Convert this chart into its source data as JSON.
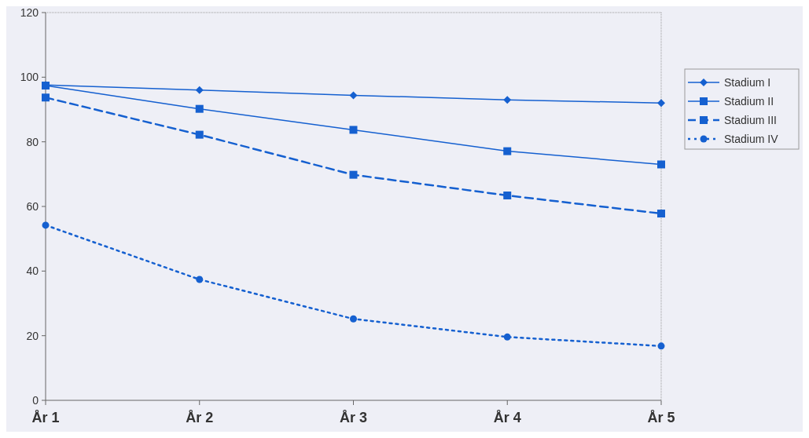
{
  "chart_data": {
    "type": "line",
    "categories": [
      "År 1",
      "År 2",
      "År 3",
      "År 4",
      "År 5"
    ],
    "series": [
      {
        "name": "Stadium I",
        "color": "#1560d0",
        "values": [
          97.6,
          96,
          94.4,
          93,
          92
        ],
        "marker": "diamond",
        "line_style": "solid"
      },
      {
        "name": "Stadium II",
        "color": "#1560d0",
        "values": [
          97.4,
          90.2,
          83.7,
          77.1,
          73
        ],
        "marker": "square",
        "line_style": "solid"
      },
      {
        "name": "Stadium III",
        "color": "#1560d0",
        "values": [
          93.7,
          82.2,
          69.8,
          63.4,
          57.8
        ],
        "marker": "square",
        "line_style": "dashed"
      },
      {
        "name": "Stadium IV",
        "color": "#1560d0",
        "values": [
          54.2,
          37.4,
          25.2,
          19.6,
          16.8
        ],
        "marker": "circle",
        "line_style": "dotted"
      }
    ],
    "ylim": [
      0,
      120
    ],
    "yticks": [
      0,
      20,
      40,
      60,
      80,
      100,
      120
    ],
    "grid": false,
    "legend": "right"
  }
}
